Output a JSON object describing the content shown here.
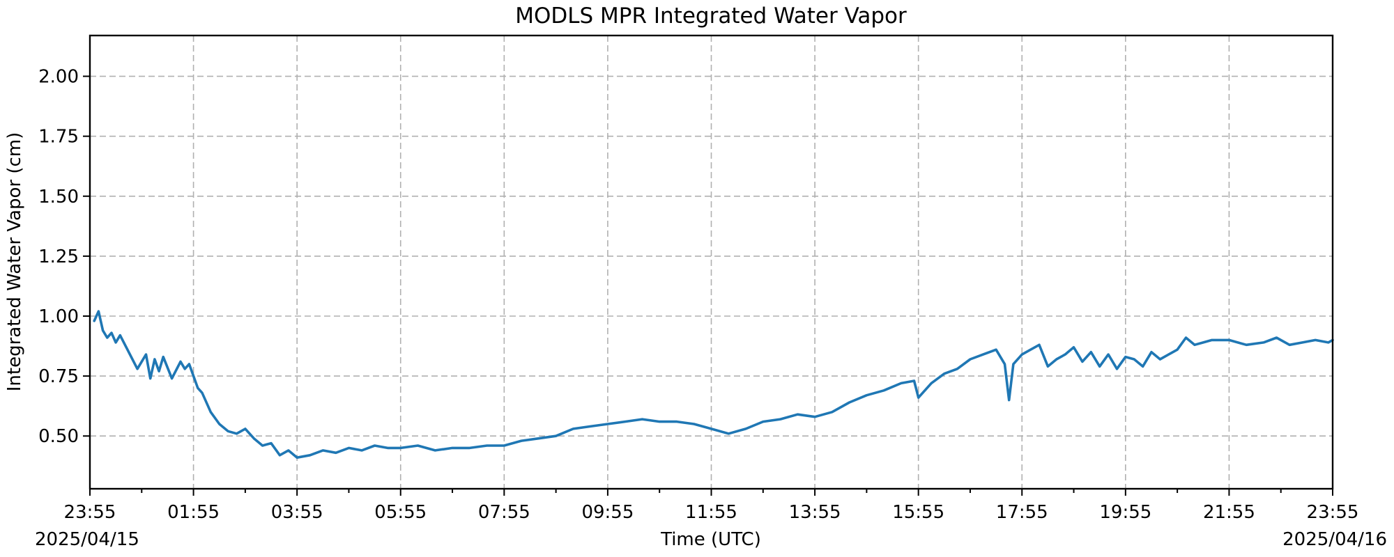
{
  "chart_data": {
    "type": "line",
    "title": "MODLS MPR Integrated Water Vapor",
    "xlabel": "Time (UTC)",
    "ylabel": "Integrated Water Vapor (cm)",
    "x_ticks": [
      "23:55",
      "01:55",
      "03:55",
      "05:55",
      "07:55",
      "09:55",
      "11:55",
      "13:55",
      "15:55",
      "17:55",
      "19:55",
      "21:55",
      "23:55"
    ],
    "x_start_date": "2025/04/15",
    "x_end_date": "2025/04/16",
    "ylim": [
      0.28,
      2.17
    ],
    "y_ticks": [
      0.5,
      0.75,
      1.0,
      1.25,
      1.5,
      1.75,
      2.0
    ],
    "y_tick_labels": [
      "0.50",
      "0.75",
      "1.00",
      "1.25",
      "1.50",
      "1.75",
      "2.00"
    ],
    "grid": true,
    "series": [
      {
        "color": "#1f77b4",
        "x": [
          "00:00",
          "00:05",
          "00:10",
          "00:15",
          "00:20",
          "00:25",
          "00:30",
          "00:40",
          "00:50",
          "01:00",
          "01:05",
          "01:10",
          "01:15",
          "01:20",
          "01:30",
          "01:40",
          "01:45",
          "01:50",
          "02:00",
          "02:05",
          "02:15",
          "02:25",
          "02:35",
          "02:45",
          "02:55",
          "03:05",
          "03:15",
          "03:25",
          "03:35",
          "03:45",
          "03:55",
          "04:10",
          "04:25",
          "04:40",
          "04:55",
          "05:10",
          "05:25",
          "05:40",
          "05:55",
          "06:15",
          "06:35",
          "06:55",
          "07:15",
          "07:35",
          "07:55",
          "08:15",
          "08:35",
          "08:55",
          "09:15",
          "09:35",
          "09:55",
          "10:15",
          "10:35",
          "10:55",
          "11:15",
          "11:35",
          "11:55",
          "12:15",
          "12:35",
          "12:55",
          "13:15",
          "13:35",
          "13:55",
          "14:15",
          "14:35",
          "14:55",
          "15:15",
          "15:35",
          "15:50",
          "15:55",
          "16:10",
          "16:25",
          "16:40",
          "16:55",
          "17:10",
          "17:25",
          "17:35",
          "17:40",
          "17:45",
          "17:55",
          "18:05",
          "18:15",
          "18:25",
          "18:35",
          "18:45",
          "18:55",
          "19:05",
          "19:15",
          "19:25",
          "19:35",
          "19:45",
          "19:55",
          "20:05",
          "20:15",
          "20:25",
          "20:35",
          "20:45",
          "20:55",
          "21:05",
          "21:15",
          "21:25",
          "21:35",
          "21:55",
          "22:15",
          "22:35",
          "22:50",
          "23:05",
          "23:20",
          "23:35",
          "23:50",
          "23:55"
        ],
        "y": [
          0.98,
          1.02,
          0.94,
          0.91,
          0.93,
          0.89,
          0.92,
          0.85,
          0.78,
          0.84,
          0.74,
          0.82,
          0.77,
          0.83,
          0.74,
          0.81,
          0.78,
          0.8,
          0.7,
          0.68,
          0.6,
          0.55,
          0.52,
          0.51,
          0.53,
          0.49,
          0.46,
          0.47,
          0.42,
          0.44,
          0.41,
          0.42,
          0.44,
          0.43,
          0.45,
          0.44,
          0.46,
          0.45,
          0.45,
          0.46,
          0.44,
          0.45,
          0.45,
          0.46,
          0.46,
          0.48,
          0.49,
          0.5,
          0.53,
          0.54,
          0.55,
          0.56,
          0.57,
          0.56,
          0.56,
          0.55,
          0.53,
          0.51,
          0.53,
          0.56,
          0.57,
          0.59,
          0.58,
          0.6,
          0.64,
          0.67,
          0.69,
          0.72,
          0.73,
          0.66,
          0.72,
          0.76,
          0.78,
          0.82,
          0.84,
          0.86,
          0.8,
          0.65,
          0.8,
          0.84,
          0.86,
          0.88,
          0.79,
          0.82,
          0.84,
          0.87,
          0.81,
          0.85,
          0.79,
          0.84,
          0.78,
          0.83,
          0.82,
          0.79,
          0.85,
          0.82,
          0.84,
          0.86,
          0.91,
          0.88,
          0.89,
          0.9,
          0.9,
          0.88,
          0.89,
          0.91,
          0.88,
          0.89,
          0.9,
          0.89,
          0.9
        ]
      }
    ]
  }
}
